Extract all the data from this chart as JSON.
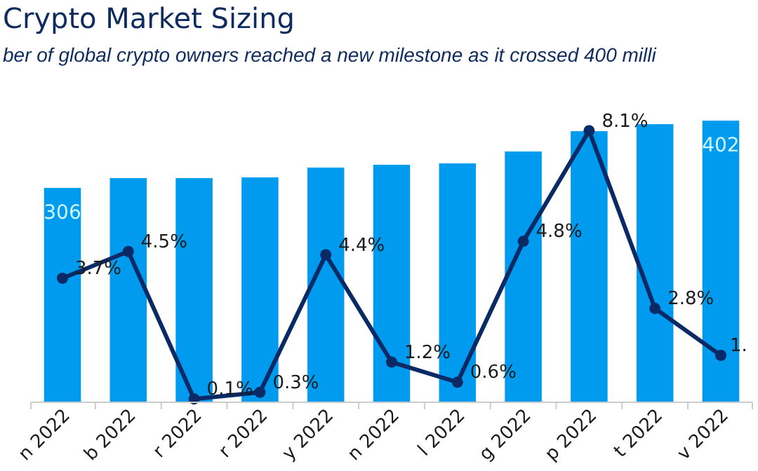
{
  "chart_data": {
    "type": "bar",
    "title": "Crypto Market Sizing",
    "subtitle": "ber of global crypto owners reached a new milestone as it crossed 400 milli",
    "categories": [
      "n 2022",
      "b 2022",
      "r 2022",
      "r 2022",
      "y 2022",
      "n 2022",
      "l 2022",
      "g 2022",
      "p 2022",
      "t 2022",
      "v 2022"
    ],
    "series": [
      {
        "color": "#009bef",
        "values": [
          306,
          320,
          320,
          321,
          335,
          339,
          341,
          358,
          387,
          397,
          402
        ],
        "value_labels": [
          "306",
          null,
          null,
          null,
          null,
          null,
          null,
          null,
          null,
          null,
          "402"
        ]
      },
      {
        "type": "line",
        "axis": "y2",
        "color": "#0a2a66",
        "marker": "circle",
        "values": [
          3.7,
          4.5,
          0.1,
          0.3,
          4.4,
          1.2,
          0.6,
          4.8,
          8.1,
          2.8,
          1.4
        ],
        "value_labels": [
          "3.7%",
          "4.5%",
          "0.1%",
          "0.3%",
          "4.4%",
          "1.2%",
          "0.6%",
          "4.8%",
          "8.1%",
          "2.8%",
          "1."
        ]
      }
    ]
  }
}
